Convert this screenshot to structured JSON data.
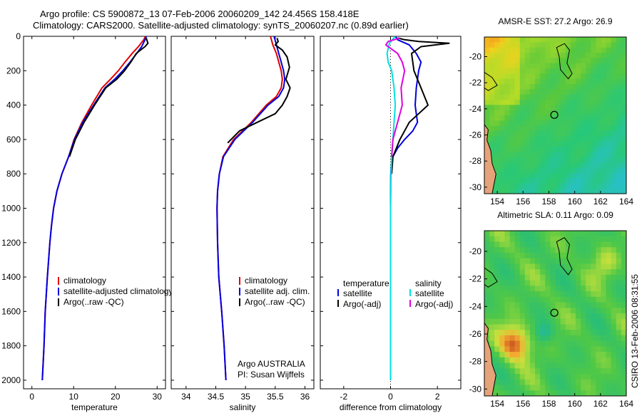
{
  "figure": {
    "title_line1": "Argo profile: CS 5900872_13 07-Feb-2006 20060209_142 24.456S 158.418E",
    "title_line2": "Climatology: CARS2000. Satellite-adjusted climatology: synTS_20060207.nc (0.89d earlier)",
    "credit": "Argo AUSTRALIA",
    "pi": "PI: Susan Wijffels",
    "stamp": "CSIRO 13-Feb-2006 08:31:55"
  },
  "colors": {
    "red": "#e00000",
    "blue": "#0000e0",
    "black": "#000000",
    "cyan": "#00e0e0",
    "magenta": "#e000e0"
  },
  "chart_data": [
    {
      "type": "line",
      "xlabel": "temperature",
      "ylabel": "",
      "xlim": [
        -2,
        32
      ],
      "ylim": [
        2050,
        0
      ],
      "xticks": [
        0,
        10,
        20,
        30
      ],
      "yticks": [
        0,
        200,
        400,
        600,
        800,
        1000,
        1200,
        1400,
        1600,
        1800,
        2000
      ],
      "legend": [
        "climatology",
        "satellite-adjusted climatology",
        "Argo(..raw -QC)"
      ],
      "series": [
        {
          "name": "climatology",
          "color": "#e00000",
          "x": [
            27.2,
            26.8,
            25.5,
            24,
            22.3,
            20.7,
            18.8,
            16.8,
            14.3,
            12,
            10.1,
            8.8,
            7.2,
            6,
            5.2,
            4.7,
            4.3,
            3.7,
            3.2,
            2.9,
            2.7,
            2.5
          ],
          "y": [
            0,
            20,
            60,
            100,
            150,
            200,
            250,
            300,
            400,
            500,
            600,
            700,
            800,
            900,
            1000,
            1100,
            1200,
            1400,
            1600,
            1800,
            1900,
            2000
          ]
        },
        {
          "name": "satellite-adjusted climatology",
          "color": "#0000e0",
          "x": [
            27.4,
            27.1,
            26.3,
            25.1,
            23.5,
            21.8,
            19.8,
            17.5,
            14.8,
            12.2,
            10.2,
            8.8,
            7.2,
            6,
            5.2,
            4.7,
            4.3,
            3.7,
            3.2,
            2.9,
            2.7,
            2.5
          ],
          "y": [
            0,
            20,
            60,
            100,
            150,
            200,
            250,
            300,
            400,
            500,
            600,
            700,
            800,
            900,
            1000,
            1100,
            1200,
            1400,
            1600,
            1800,
            1900,
            2000
          ]
        },
        {
          "name": "Argo(..raw -QC)",
          "color": "#000000",
          "x": [
            27.4,
            27.5,
            27.8,
            27.1,
            26,
            25,
            23.7,
            22.2,
            20.3,
            17.7,
            15,
            12.5,
            10.4,
            9
          ],
          "y": [
            10,
            20,
            40,
            60,
            80,
            100,
            150,
            200,
            250,
            300,
            400,
            500,
            600,
            700
          ]
        }
      ]
    },
    {
      "type": "line",
      "xlabel": "salinity",
      "ylabel": "",
      "xlim": [
        33.75,
        36.15
      ],
      "ylim": [
        2050,
        0
      ],
      "xticks": [
        34,
        34.5,
        35,
        35.5,
        36
      ],
      "legend": [
        "climatology",
        "satellite adj. clim.",
        "Argo(..raw -QC)"
      ],
      "series": [
        {
          "name": "climatology",
          "color": "#e00000",
          "x": [
            35.42,
            35.46,
            35.52,
            35.56,
            35.6,
            35.62,
            35.6,
            35.52,
            35.35,
            35.1,
            34.8,
            34.62,
            34.56,
            34.53,
            34.52,
            34.53,
            34.55,
            34.6,
            34.64,
            34.67
          ],
          "y": [
            0,
            50,
            100,
            150,
            200,
            250,
            300,
            350,
            400,
            500,
            600,
            700,
            800,
            900,
            1000,
            1200,
            1400,
            1600,
            1800,
            2000
          ]
        },
        {
          "name": "satellite adj. clim.",
          "color": "#0000e0",
          "x": [
            35.48,
            35.52,
            35.56,
            35.6,
            35.64,
            35.66,
            35.64,
            35.56,
            35.38,
            35.12,
            34.82,
            34.63,
            34.56,
            34.53,
            34.52,
            34.53,
            34.55,
            34.6,
            34.64,
            34.67
          ],
          "y": [
            0,
            50,
            100,
            150,
            200,
            250,
            300,
            350,
            400,
            500,
            600,
            700,
            800,
            900,
            1000,
            1200,
            1400,
            1600,
            1800,
            2000
          ]
        },
        {
          "name": "Argo(..raw -QC)",
          "color": "#000000",
          "x": [
            35.53,
            35.55,
            35.5,
            35.62,
            35.7,
            35.74,
            35.68,
            35.75,
            35.7,
            35.62,
            35.5,
            35.2,
            34.9,
            34.7
          ],
          "y": [
            10,
            30,
            50,
            80,
            120,
            180,
            250,
            300,
            350,
            400,
            450,
            500,
            550,
            620
          ]
        }
      ]
    },
    {
      "type": "line",
      "xlabel": "difference from climatology",
      "ylabel": "",
      "xlim": [
        -3,
        3
      ],
      "ylim": [
        2050,
        0
      ],
      "xticks": [
        -2,
        0,
        2
      ],
      "legend": [
        "temperature",
        "satellite",
        "Argo(-adj)",
        "salinity",
        "satellite",
        "Argo(-adj)"
      ],
      "series": [
        {
          "name": "temperature satellite",
          "color": "#0000e0",
          "x": [
            0.2,
            0.3,
            0.8,
            1.1,
            1.3,
            1.2,
            1.1,
            1.05,
            1.1,
            1.15,
            0.95,
            0.6,
            0.3,
            0.1,
            0.03,
            0.01,
            0,
            0,
            0,
            0
          ],
          "y": [
            0,
            20,
            50,
            100,
            150,
            200,
            300,
            400,
            450,
            500,
            550,
            600,
            650,
            700,
            750,
            800,
            1000,
            1400,
            1800,
            2000
          ]
        },
        {
          "name": "temperature Argo(-adj)",
          "color": "#000000",
          "x": [
            0.3,
            0.6,
            1.2,
            2.5,
            1.3,
            0.9,
            1.0,
            1.3,
            1.6,
            1.2,
            0.8,
            0.6,
            0.4,
            0.25,
            0.1,
            0.05
          ],
          "y": [
            10,
            20,
            30,
            40,
            60,
            100,
            200,
            300,
            400,
            450,
            500,
            550,
            600,
            650,
            700,
            800
          ]
        },
        {
          "name": "salinity satellite",
          "color": "#00e0e0",
          "x": [
            0.2,
            -0.05,
            -0.15,
            -0.1,
            0.05,
            0.15,
            0.2,
            0.15,
            0.1,
            0.05,
            0.02,
            0,
            0,
            0,
            0,
            0
          ],
          "y": [
            0,
            40,
            100,
            150,
            200,
            300,
            400,
            500,
            600,
            700,
            800,
            1000,
            1200,
            1400,
            1800,
            2000
          ]
        },
        {
          "name": "salinity Argo(-adj)",
          "color": "#e000e0",
          "x": [
            0.4,
            -0.1,
            -0.2,
            0.3,
            0.5,
            0.6,
            0.45,
            0.5,
            0.3,
            0.2,
            0.1,
            0.05
          ],
          "y": [
            10,
            30,
            50,
            100,
            150,
            200,
            300,
            400,
            500,
            550,
            600,
            700
          ]
        }
      ]
    }
  ],
  "maps": [
    {
      "title": "AMSR-E SST: 27.2 Argo: 26.9",
      "xticks": [
        "154",
        "156",
        "158",
        "160",
        "162",
        "164"
      ],
      "yticks": [
        "-20",
        "-22",
        "-24",
        "-26",
        "-28",
        "-30"
      ],
      "xlim": [
        153,
        164
      ],
      "ylim": [
        -30.5,
        -18.5
      ],
      "marker": {
        "lon": 158.42,
        "lat": -24.46
      }
    },
    {
      "title": "Altimetric SLA: 0.11 Argo: 0.09",
      "xticks": [
        "154",
        "156",
        "158",
        "160",
        "162",
        "164"
      ],
      "yticks": [
        "-20",
        "-22",
        "-24",
        "-26",
        "-28",
        "-30"
      ],
      "xlim": [
        153,
        164
      ],
      "ylim": [
        -30.5,
        -18.5
      ],
      "marker": {
        "lon": 158.42,
        "lat": -24.46
      }
    }
  ]
}
